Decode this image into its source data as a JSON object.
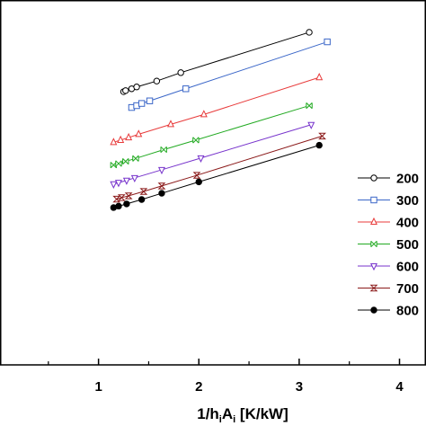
{
  "chart_data": {
    "type": "line",
    "title": "",
    "xlabel": "1/h",
    "xlabel_sub1": "i",
    "xlabel_mid": "A",
    "xlabel_sub2": "i",
    "xlabel_unit": " [K/kW]",
    "ylabel": "",
    "xlim": [
      0,
      4.3
    ],
    "ylim": [
      0,
      1
    ],
    "xticks": [
      "1",
      "2",
      "3",
      "4"
    ],
    "xtick_values": [
      1,
      2,
      3,
      4
    ],
    "grid": false,
    "legend_position": "right",
    "series": [
      {
        "name": "200",
        "color": "#000000",
        "marker": "circle-open",
        "x": [
          1.25,
          1.27,
          1.33,
          1.38,
          1.58,
          1.82,
          3.1
        ],
        "y": [
          0.745,
          0.748,
          0.753,
          0.758,
          0.774,
          0.797,
          0.907
        ]
      },
      {
        "name": "300",
        "color": "#3a66c8",
        "marker": "square-open",
        "x": [
          1.33,
          1.38,
          1.43,
          1.51,
          1.87,
          3.28
        ],
        "y": [
          0.702,
          0.707,
          0.713,
          0.72,
          0.753,
          0.881
        ]
      },
      {
        "name": "400",
        "color": "#e83b3b",
        "marker": "triangle-up-open",
        "x": [
          1.15,
          1.22,
          1.3,
          1.4,
          1.72,
          2.05,
          3.2
        ],
        "y": [
          0.607,
          0.613,
          0.62,
          0.629,
          0.656,
          0.683,
          0.784
        ]
      },
      {
        "name": "500",
        "color": "#22aa22",
        "marker": "x-square",
        "x": [
          1.15,
          1.2,
          1.27,
          1.37,
          1.65,
          1.97,
          3.1
        ],
        "y": [
          0.545,
          0.549,
          0.555,
          0.563,
          0.587,
          0.613,
          0.707
        ]
      },
      {
        "name": "600",
        "color": "#7733cc",
        "marker": "triangle-down-open",
        "x": [
          1.15,
          1.2,
          1.28,
          1.36,
          1.63,
          2.02,
          3.12
        ],
        "y": [
          0.493,
          0.497,
          0.503,
          0.51,
          0.532,
          0.564,
          0.655
        ]
      },
      {
        "name": "700",
        "color": "#8b1a1a",
        "marker": "hourglass",
        "x": [
          1.18,
          1.23,
          1.3,
          1.45,
          1.63,
          1.98,
          3.23
        ],
        "y": [
          0.452,
          0.456,
          0.461,
          0.473,
          0.488,
          0.517,
          0.624
        ]
      },
      {
        "name": "800",
        "color": "#000000",
        "marker": "circle-filled",
        "x": [
          1.15,
          1.2,
          1.28,
          1.43,
          1.63,
          2.0,
          3.2
        ],
        "y": [
          0.429,
          0.433,
          0.439,
          0.451,
          0.468,
          0.499,
          0.599
        ]
      }
    ]
  }
}
